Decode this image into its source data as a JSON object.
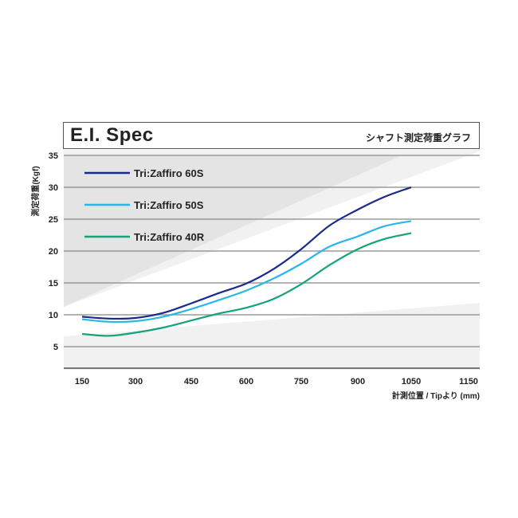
{
  "header": {
    "title": "E.I. Spec",
    "subtitle": "シャフト測定荷重グラフ"
  },
  "axes": {
    "ylabel": "測定荷重(Kgf)",
    "xlabel": "計測位置 / Tipより (mm)",
    "yticks": [
      "35",
      "30",
      "25",
      "20",
      "15",
      "10",
      "5"
    ],
    "xticks": [
      "150",
      "300",
      "450",
      "600",
      "750",
      "900",
      "1050",
      "1150"
    ]
  },
  "legend": [
    {
      "label": "Tri:Zaffiro 60S",
      "color": "#1a2a8c"
    },
    {
      "label": "Tri:Zaffiro 50S",
      "color": "#29b6e8"
    },
    {
      "label": "Tri:Zaffiro 40R",
      "color": "#14a37a"
    }
  ],
  "chart_data": {
    "type": "line",
    "title": "E.I. Spec",
    "subtitle": "シャフト測定荷重グラフ",
    "xlabel": "計測位置 / Tipより (mm)",
    "ylabel": "測定荷重(Kgf)",
    "x": [
      150,
      225,
      300,
      375,
      450,
      525,
      600,
      675,
      750,
      825,
      900,
      975,
      1050
    ],
    "xticks": [
      150,
      300,
      450,
      600,
      750,
      900,
      1050,
      1150
    ],
    "yticks": [
      5,
      10,
      15,
      20,
      25,
      30,
      35
    ],
    "xlim": [
      150,
      1150
    ],
    "ylim": [
      2,
      35
    ],
    "grid": "horizontal",
    "legend_position": "upper left",
    "series": [
      {
        "name": "Tri:Zaffiro 60S",
        "color": "#1a2a8c",
        "values": [
          9.7,
          9.4,
          9.5,
          10.3,
          11.8,
          13.4,
          14.9,
          17.2,
          20.3,
          24.0,
          26.5,
          28.5,
          30.0
        ]
      },
      {
        "name": "Tri:Zaffiro 50S",
        "color": "#29b6e8",
        "values": [
          9.3,
          8.9,
          9.0,
          9.7,
          10.9,
          12.3,
          13.8,
          15.7,
          18.0,
          20.7,
          22.3,
          23.9,
          24.7
        ]
      },
      {
        "name": "Tri:Zaffiro 40R",
        "color": "#14a37a",
        "values": [
          7.0,
          6.7,
          7.2,
          8.0,
          9.1,
          10.2,
          11.1,
          12.5,
          14.8,
          17.8,
          20.3,
          21.9,
          22.8
        ]
      }
    ]
  }
}
